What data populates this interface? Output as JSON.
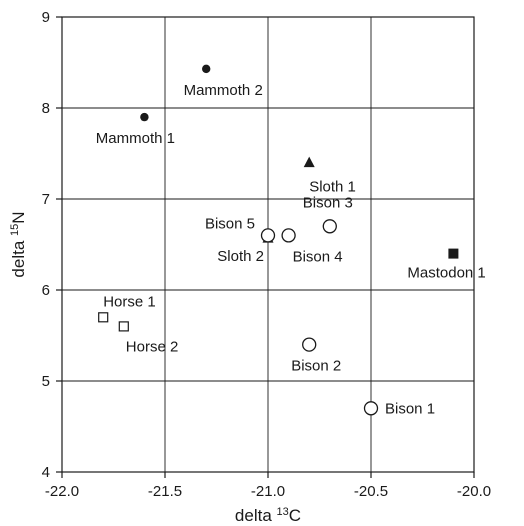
{
  "chart_data": {
    "type": "scatter",
    "xlabel_prefix": "delta",
    "xlabel_sup": "13",
    "xlabel_suffix": "C",
    "ylabel_prefix": "delta",
    "ylabel_sup": "15",
    "ylabel_suffix": "N",
    "xlim": [
      -22.0,
      -20.0
    ],
    "ylim": [
      4,
      9
    ],
    "xticks": [
      -22.0,
      -21.5,
      -21.0,
      -20.5,
      -20.0
    ],
    "xtick_labels": [
      "-22.0",
      "-21.5",
      "-21.0",
      "-20.5",
      "-20.0"
    ],
    "yticks": [
      4,
      5,
      6,
      7,
      8,
      9
    ],
    "ytick_labels": [
      "4",
      "5",
      "6",
      "7",
      "8",
      "9"
    ],
    "grid": true,
    "points": [
      {
        "label": "Mammoth 1",
        "x": -21.6,
        "y": 7.9,
        "marker": "filled-circle"
      },
      {
        "label": "Mammoth 2",
        "x": -21.3,
        "y": 8.43,
        "marker": "filled-circle"
      },
      {
        "label": "Sloth 1",
        "x": -20.8,
        "y": 7.4,
        "marker": "filled-triangle"
      },
      {
        "label": "Sloth 2",
        "x": -21.0,
        "y": 6.57,
        "marker": "filled-triangle"
      },
      {
        "label": "Bison 5",
        "x": -21.0,
        "y": 6.6,
        "marker": "open-circle"
      },
      {
        "label": "Bison 4",
        "x": -20.9,
        "y": 6.6,
        "marker": "open-circle"
      },
      {
        "label": "Bison 3",
        "x": -20.7,
        "y": 6.7,
        "marker": "open-circle"
      },
      {
        "label": "Bison 2",
        "x": -20.8,
        "y": 5.4,
        "marker": "open-circle"
      },
      {
        "label": "Bison 1",
        "x": -20.5,
        "y": 4.7,
        "marker": "open-circle"
      },
      {
        "label": "Mastodon 1",
        "x": -20.1,
        "y": 6.4,
        "marker": "filled-square"
      },
      {
        "label": "Horse 1",
        "x": -21.8,
        "y": 5.7,
        "marker": "open-square"
      },
      {
        "label": "Horse 2",
        "x": -21.7,
        "y": 5.6,
        "marker": "open-square"
      }
    ]
  }
}
